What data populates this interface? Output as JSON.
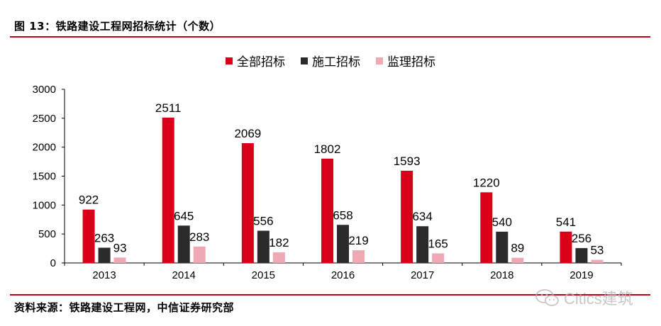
{
  "header": {
    "title": "图 13：铁路建设工程网招标统计（个数）"
  },
  "footer": {
    "source": "资料来源：铁路建设工程网，中信证券研究部",
    "watermark": "Citics建筑"
  },
  "colors": {
    "rule": "#c00018",
    "series": [
      "#d80018",
      "#2b2b2b",
      "#f0a8b4"
    ]
  },
  "chart_data": {
    "type": "bar",
    "categories": [
      "2013",
      "2014",
      "2015",
      "2016",
      "2017",
      "2018",
      "2019"
    ],
    "series": [
      {
        "name": "全部招标",
        "values": [
          922,
          2511,
          2069,
          1802,
          1593,
          1220,
          541
        ]
      },
      {
        "name": "施工招标",
        "values": [
          263,
          645,
          556,
          658,
          634,
          540,
          256
        ]
      },
      {
        "name": "监理招标",
        "values": [
          93,
          283,
          182,
          219,
          165,
          89,
          53
        ]
      }
    ],
    "ylim": [
      0,
      3000
    ],
    "yticks": [
      0,
      500,
      1000,
      1500,
      2000,
      2500,
      3000
    ],
    "legend_position": "top-center",
    "data_labels": true
  }
}
